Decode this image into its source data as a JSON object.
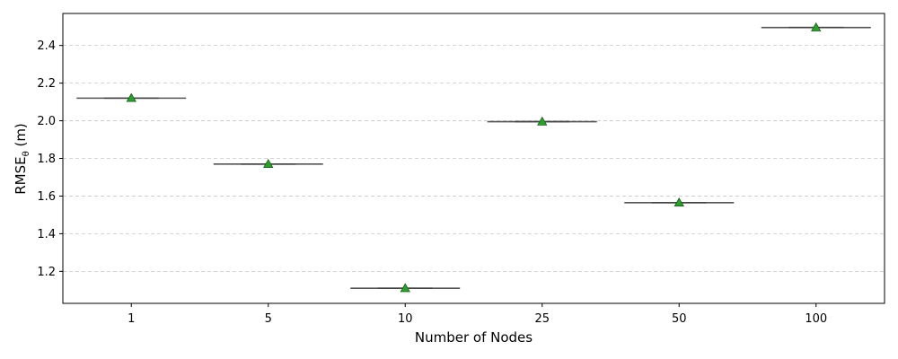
{
  "chart_data": {
    "type": "box",
    "xlabel": "Number of Nodes",
    "ylabel_main": "RMSE",
    "ylabel_sub": "θ",
    "ylabel_unit": " (m)",
    "categories": [
      "1",
      "5",
      "10",
      "25",
      "50",
      "100"
    ],
    "values": [
      2.12,
      1.77,
      1.11,
      1.995,
      1.565,
      2.495
    ],
    "ylim": [
      1.03,
      2.57
    ],
    "yticks": [
      1.2,
      1.4,
      1.6,
      1.8,
      2.0,
      2.2,
      2.4
    ],
    "ytick_labels": [
      "1.2",
      "1.4",
      "1.6",
      "1.8",
      "2.0",
      "2.2",
      "2.4"
    ],
    "grid": "y-dashed",
    "colors": {
      "box_line": "#555555",
      "mean_marker": "#2ca02c",
      "mean_edge": "#1a5c1a",
      "grid": "#c8c8c8"
    }
  }
}
